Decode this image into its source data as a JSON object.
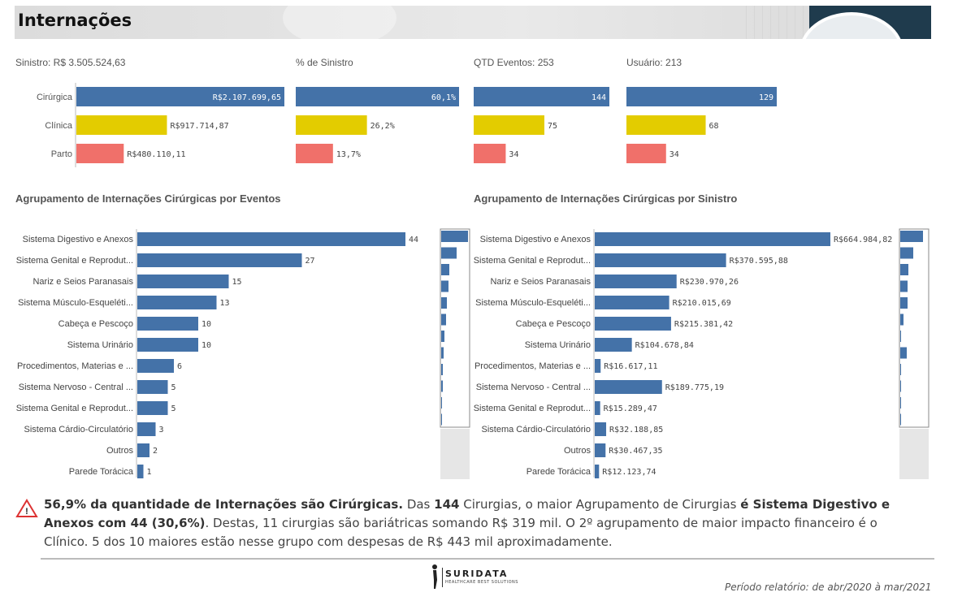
{
  "header": {
    "title": "Internações"
  },
  "kpis": {
    "sinistro": "Sinistro: R$ 3.505.524,63",
    "pct_sinistro": "% de Sinistro",
    "qtd_eventos": "QTD Eventos: 253",
    "usuario": "Usuário: 213"
  },
  "sections": {
    "eventos_title": "Agrupamento de Internações Cirúrgicas por Eventos",
    "sinistro_title": "Agrupamento de Internações Cirúrgicas por Sinistro"
  },
  "colors": {
    "blue": "#4472a8",
    "yellow": "#e3cc00",
    "red": "#f0706a",
    "scroll_thumb": "#e6e6e6"
  },
  "chart_data": [
    {
      "id": "sinistro_tipo",
      "type": "bar",
      "orientation": "horizontal",
      "categories": [
        "Cirúrgica",
        "Clínica",
        "Parto"
      ],
      "values": [
        2107699.65,
        917714.87,
        480110.11
      ],
      "labels": [
        "R$2.107.699,65",
        "R$917.714,87",
        "R$480.110,11"
      ],
      "colors": [
        "#4472a8",
        "#e3cc00",
        "#f0706a"
      ]
    },
    {
      "id": "pct_sinistro",
      "type": "bar",
      "orientation": "horizontal",
      "categories": [
        "Cirúrgica",
        "Clínica",
        "Parto"
      ],
      "values": [
        60.1,
        26.2,
        13.7
      ],
      "labels": [
        "60,1%",
        "26,2%",
        "13,7%"
      ],
      "colors": [
        "#4472a8",
        "#e3cc00",
        "#f0706a"
      ]
    },
    {
      "id": "qtd_eventos",
      "type": "bar",
      "orientation": "horizontal",
      "categories": [
        "Cirúrgica",
        "Clínica",
        "Parto"
      ],
      "values": [
        144,
        75,
        34
      ],
      "labels": [
        "144",
        "75",
        "34"
      ],
      "colors": [
        "#4472a8",
        "#e3cc00",
        "#f0706a"
      ]
    },
    {
      "id": "usuario",
      "type": "bar",
      "orientation": "horizontal",
      "categories": [
        "Cirúrgica",
        "Clínica",
        "Parto"
      ],
      "values": [
        129,
        68,
        34
      ],
      "labels": [
        "129",
        "68",
        "34"
      ],
      "colors": [
        "#4472a8",
        "#e3cc00",
        "#f0706a"
      ]
    },
    {
      "id": "eventos",
      "type": "bar",
      "orientation": "horizontal",
      "categories": [
        "Sistema Digestivo e Anexos",
        "Sistema Genital e Reprodut...",
        "Nariz e Seios Paranasais",
        "Sistema Músculo-Esqueléti...",
        "Cabeça e Pescoço",
        "Sistema Urinário",
        "Procedimentos, Materias e ...",
        "Sistema Nervoso - Central ...",
        "Sistema Genital e Reprodut...",
        "Sistema Cárdio-Circulatório",
        "Outros",
        "Parede Torácica"
      ],
      "values": [
        44,
        27,
        15,
        13,
        10,
        10,
        6,
        5,
        5,
        3,
        2,
        1
      ],
      "labels": [
        "44",
        "27",
        "15",
        "13",
        "10",
        "10",
        "6",
        "5",
        "5",
        "3",
        "2",
        "1"
      ],
      "minimap": [
        33,
        19,
        10,
        9,
        7,
        6,
        4,
        3,
        2,
        2,
        1,
        1
      ]
    },
    {
      "id": "sinistro_grupo",
      "type": "bar",
      "orientation": "horizontal",
      "categories": [
        "Sistema Digestivo e Anexos",
        "Sistema Genital e Reprodut...",
        "Nariz e Seios Paranasais",
        "Sistema Músculo-Esqueléti...",
        "Cabeça e Pescoço",
        "Sistema Urinário",
        "Procedimentos, Materias e ...",
        "Sistema Nervoso - Central ...",
        "Sistema Genital e Reprodut...",
        "Sistema Cárdio-Circulatório",
        "Outros",
        "Parede Torácica"
      ],
      "values": [
        664984.82,
        370595.88,
        230970.26,
        210015.69,
        215381.42,
        104678.84,
        16617.11,
        189775.19,
        15289.47,
        32188.85,
        30467.35,
        12123.74
      ],
      "labels": [
        "R$664.984,82",
        "R$370.595,88",
        "R$230.970,26",
        "R$210.015,69",
        "R$215.381,42",
        "R$104.678,84",
        "R$16.617,11",
        "R$189.775,19",
        "R$15.289,47",
        "R$32.188,85",
        "R$30.467,35",
        "R$12.123,74"
      ],
      "minimap": [
        28,
        16,
        10,
        9,
        9,
        4,
        1,
        8,
        1,
        1,
        1,
        1
      ]
    }
  ],
  "insight": {
    "bold1": "56,9% da quantidade de Internações são Cirúrgicas.",
    "t1": " Das ",
    "bold2": "144",
    "t2": " Cirurgias, o maior Agrupamento de Cirurgias ",
    "bold3": "é Sistema Digestivo e Anexos com 44 (30,6%)",
    "t3": ". Destas, 11 cirurgias são bariátricas somando R$ 319 mil. O 2º agrupamento de maior impacto financeiro é o Clínico. 5 dos 10 maiores estão nesse grupo com despesas de R$ 443 mil aproximadamente."
  },
  "footer": {
    "logo": "SURIDATA",
    "logo_sub": "HEALTHCARE BEST SOLUTIONS",
    "period": "Período relatório: de abr/2020 à mar/2021"
  }
}
